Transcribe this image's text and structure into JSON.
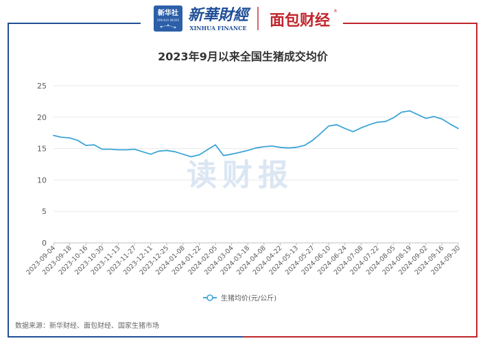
{
  "header": {
    "xinhua_badge": "新华社",
    "xinhua_badge_sub": "XINHUA NEWS",
    "brand_name": "新華財經",
    "brand_sub": "XINHUA FINANCE",
    "partner_brand": "面包财经",
    "partner_mark": "®"
  },
  "watermark": "读财报",
  "source": "数据来源：新华财经、面包财经、国家生猪市场",
  "colors": {
    "line": "#3aa4d8",
    "frame_blue": "#1f4e96",
    "frame_red": "#c0242b",
    "grid": "#e8e8e8",
    "axis_text": "#595959",
    "title_text": "#333333",
    "watermark": "#dbe6f3"
  },
  "chart_data": {
    "type": "line",
    "title": "2023年9月以来全国生猪成交均价",
    "xlabel": "",
    "ylabel": "",
    "ylim": [
      0,
      25
    ],
    "yticks": [
      0,
      5,
      10,
      15,
      20,
      25
    ],
    "grid": true,
    "legend_position": "bottom",
    "x_tick_labels": [
      "2023-09-04",
      "2023-09-18",
      "2023-10-16",
      "2023-10-30",
      "2023-11-13",
      "2023-11-27",
      "2023-12-11",
      "2023-12-25",
      "2024-01-08",
      "2024-01-22",
      "2024-02-05",
      "2024-03-04",
      "2024-03-18",
      "2024-04-08",
      "2024-04-22",
      "2024-05-13",
      "2024-05-27",
      "2024-06-10",
      "2024-06-24",
      "2024-07-08",
      "2024-07-22",
      "2024-08-05",
      "2024-08-19",
      "2024-09-02",
      "2024-09-16",
      "2024-09-30"
    ],
    "series": [
      {
        "name": "生猪均价(元/公斤)",
        "values": [
          17.1,
          16.8,
          16.7,
          16.3,
          15.5,
          15.6,
          14.9,
          14.9,
          14.8,
          14.8,
          14.9,
          14.5,
          14.1,
          14.6,
          14.7,
          14.5,
          14.1,
          13.7,
          14.0,
          14.8,
          15.6,
          13.9,
          14.1,
          14.4,
          14.7,
          15.1,
          15.3,
          15.4,
          15.2,
          15.1,
          15.2,
          15.5,
          16.3,
          17.4,
          18.6,
          18.8,
          18.2,
          17.7,
          18.3,
          18.8,
          19.2,
          19.3,
          19.9,
          20.8,
          21.0,
          20.4,
          19.8,
          20.1,
          19.7,
          18.9,
          18.2
        ]
      }
    ]
  }
}
